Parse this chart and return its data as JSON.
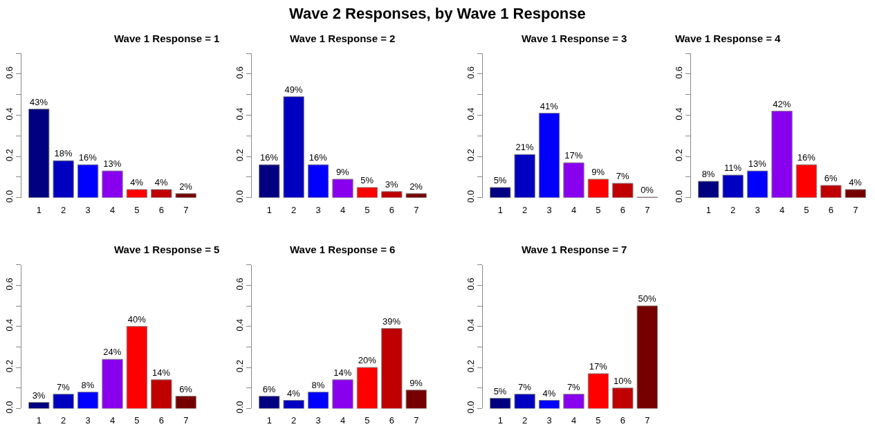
{
  "chart_data": [
    {
      "type": "bar",
      "title": "Wave 1 Response = 1",
      "annotations": [
        "Wave 2 Responses, by Wave 1 Response"
      ],
      "categories": [
        "1",
        "2",
        "3",
        "4",
        "5",
        "6",
        "7"
      ],
      "colors": [
        "#000080",
        "#0000c0",
        "#0000ff",
        "#8800ee",
        "#ff0000",
        "#c00000",
        "#760000"
      ],
      "values": [
        0.43,
        0.18,
        0.16,
        0.13,
        0.04,
        0.04,
        0.02
      ],
      "value_labels": [
        "43%",
        "18%",
        "16%",
        "13%",
        "4%",
        "4%",
        "2%"
      ],
      "ylim": [
        0,
        0.7
      ],
      "yticks": [
        {
          "value": 0,
          "label": "0.0"
        },
        {
          "value": 0.1,
          "label": null
        },
        0.2,
        {
          "value": 0.3,
          "label": null
        },
        0.4,
        {
          "value": 0.5,
          "label": null
        },
        0.6,
        {
          "value": 0.7,
          "label": null
        }
      ]
    },
    {
      "type": "bar",
      "title": "Wave 1 Response = 2",
      "categories": [
        "1",
        "2",
        "3",
        "4",
        "5",
        "6",
        "7"
      ],
      "colors": [
        "#000080",
        "#0000c0",
        "#0000ff",
        "#8800ee",
        "#ff0000",
        "#c00000",
        "#760000"
      ],
      "values": [
        0.16,
        0.49,
        0.16,
        0.09,
        0.05,
        0.03,
        0.02
      ],
      "value_labels": [
        "16%",
        "49%",
        "16%",
        "9%",
        "5%",
        "3%",
        "2%"
      ],
      "ylim": [
        0,
        0.7
      ],
      "yticks": [
        {
          "value": 0,
          "label": "0.0"
        },
        {
          "value": 0.1,
          "label": null
        },
        0.2,
        {
          "value": 0.3,
          "label": null
        },
        0.4,
        {
          "value": 0.5,
          "label": null
        },
        0.6,
        {
          "value": 0.7,
          "label": null
        }
      ]
    },
    {
      "type": "bar",
      "title": "Wave 1 Response = 3",
      "categories": [
        "1",
        "2",
        "3",
        "4",
        "5",
        "6",
        "7"
      ],
      "colors": [
        "#000080",
        "#0000c0",
        "#0000ff",
        "#8800ee",
        "#ff0000",
        "#c00000",
        "#760000"
      ],
      "values": [
        0.05,
        0.21,
        0.41,
        0.17,
        0.09,
        0.07,
        0.003
      ],
      "value_labels": [
        "5%",
        "21%",
        "41%",
        "17%",
        "9%",
        "7%",
        "0%"
      ],
      "ylim": [
        0,
        0.7
      ],
      "yticks": [
        {
          "value": 0,
          "label": "0.0"
        },
        {
          "value": 0.1,
          "label": null
        },
        0.2,
        {
          "value": 0.3,
          "label": null
        },
        0.4,
        {
          "value": 0.5,
          "label": null
        },
        0.6,
        {
          "value": 0.7,
          "label": null
        }
      ]
    },
    {
      "type": "bar",
      "title": "Wave 1 Response = 4",
      "categories": [
        "1",
        "2",
        "3",
        "4",
        "5",
        "6",
        "7"
      ],
      "colors": [
        "#000080",
        "#0000c0",
        "#0000ff",
        "#8800ee",
        "#ff0000",
        "#c00000",
        "#760000"
      ],
      "values": [
        0.08,
        0.11,
        0.13,
        0.42,
        0.16,
        0.06,
        0.04
      ],
      "value_labels": [
        "8%",
        "11%",
        "13%",
        "42%",
        "16%",
        "6%",
        "4%"
      ],
      "ylim": [
        0,
        0.7
      ],
      "yticks": [
        {
          "value": 0,
          "label": "0.0"
        },
        {
          "value": 0.1,
          "label": null
        },
        0.2,
        {
          "value": 0.3,
          "label": null
        },
        0.4,
        {
          "value": 0.5,
          "label": null
        },
        0.6,
        {
          "value": 0.7,
          "label": null
        }
      ]
    },
    {
      "type": "bar",
      "title": "Wave 1 Response = 5",
      "categories": [
        "1",
        "2",
        "3",
        "4",
        "5",
        "6",
        "7"
      ],
      "colors": [
        "#000080",
        "#0000c0",
        "#0000ff",
        "#8800ee",
        "#ff0000",
        "#c00000",
        "#760000"
      ],
      "values": [
        0.03,
        0.07,
        0.08,
        0.24,
        0.4,
        0.14,
        0.06
      ],
      "value_labels": [
        "3%",
        "7%",
        "8%",
        "24%",
        "40%",
        "14%",
        "6%"
      ],
      "ylim": [
        0,
        0.7
      ],
      "yticks": [
        {
          "value": 0,
          "label": "0.0"
        },
        {
          "value": 0.1,
          "label": null
        },
        0.2,
        {
          "value": 0.3,
          "label": null
        },
        0.4,
        {
          "value": 0.5,
          "label": null
        },
        0.6,
        {
          "value": 0.7,
          "label": null
        }
      ]
    },
    {
      "type": "bar",
      "title": "Wave 1 Response = 6",
      "categories": [
        "1",
        "2",
        "3",
        "4",
        "5",
        "6",
        "7"
      ],
      "colors": [
        "#000080",
        "#0000c0",
        "#0000ff",
        "#8800ee",
        "#ff0000",
        "#c00000",
        "#760000"
      ],
      "values": [
        0.06,
        0.04,
        0.08,
        0.14,
        0.2,
        0.39,
        0.09
      ],
      "value_labels": [
        "6%",
        "4%",
        "8%",
        "14%",
        "20%",
        "39%",
        "9%"
      ],
      "ylim": [
        0,
        0.7
      ],
      "yticks": [
        {
          "value": 0,
          "label": "0.0"
        },
        {
          "value": 0.1,
          "label": null
        },
        0.2,
        {
          "value": 0.3,
          "label": null
        },
        0.4,
        {
          "value": 0.5,
          "label": null
        },
        0.6,
        {
          "value": 0.7,
          "label": null
        }
      ]
    },
    {
      "type": "bar",
      "title": "Wave 1 Response = 7",
      "categories": [
        "1",
        "2",
        "3",
        "4",
        "5",
        "6",
        "7"
      ],
      "colors": [
        "#000080",
        "#0000c0",
        "#0000ff",
        "#8800ee",
        "#ff0000",
        "#c00000",
        "#760000"
      ],
      "values": [
        0.05,
        0.07,
        0.04,
        0.07,
        0.17,
        0.1,
        0.5
      ],
      "value_labels": [
        "5%",
        "7%",
        "4%",
        "7%",
        "17%",
        "10%",
        "50%"
      ],
      "ylim": [
        0,
        0.7
      ],
      "yticks": [
        {
          "value": 0,
          "label": "0.0"
        },
        {
          "value": 0.1,
          "label": null
        },
        0.2,
        {
          "value": 0.3,
          "label": null
        },
        0.4,
        {
          "value": 0.5,
          "label": null
        },
        0.6,
        {
          "value": 0.7,
          "label": null
        }
      ]
    }
  ]
}
